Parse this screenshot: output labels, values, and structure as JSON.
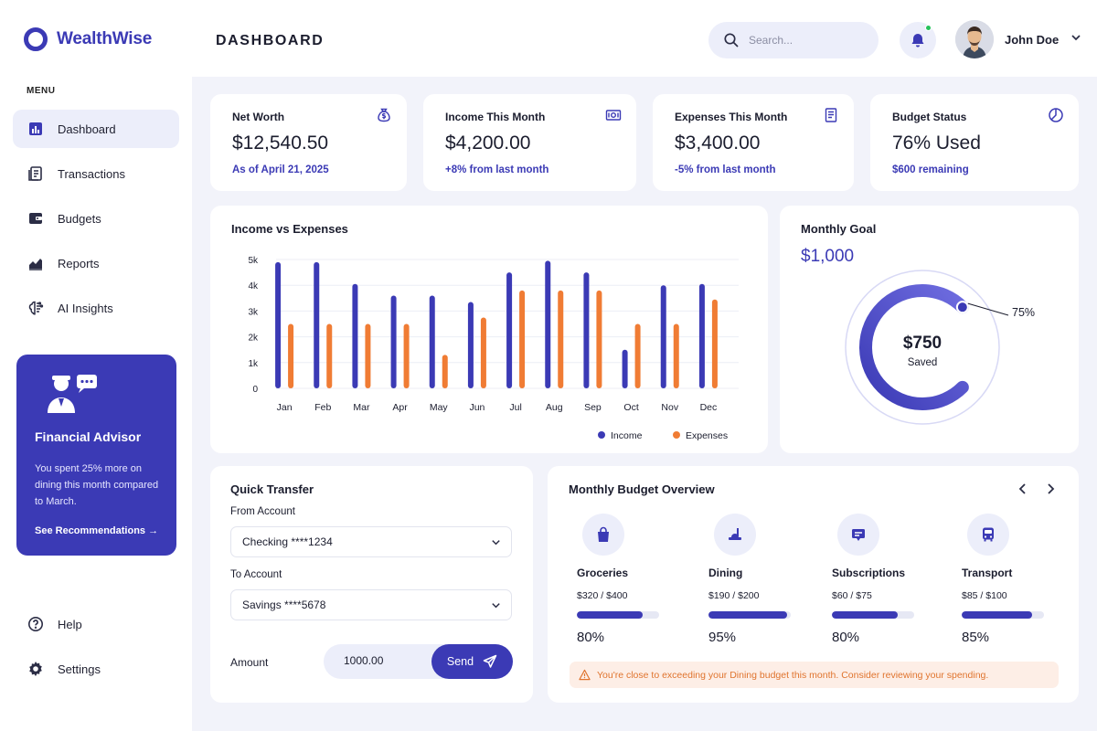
{
  "brand": {
    "name": "WealthWise"
  },
  "header": {
    "title": "DASHBOARD",
    "search_placeholder": "Search...",
    "user_name": "John Doe"
  },
  "sidebar": {
    "menu_heading": "MENU",
    "items": [
      {
        "label": "Dashboard",
        "icon": "bar-chart-icon",
        "active": true
      },
      {
        "label": "Transactions",
        "icon": "document-list-icon"
      },
      {
        "label": "Budgets",
        "icon": "wallet-icon"
      },
      {
        "label": "Reports",
        "icon": "line-chart-icon"
      },
      {
        "label": "AI Insights",
        "icon": "brain-icon"
      }
    ],
    "bottom_items": [
      {
        "label": "Help",
        "icon": "help-circle-icon"
      },
      {
        "label": "Settings",
        "icon": "gear-icon"
      }
    ],
    "advisor": {
      "title": "Financial Advisor",
      "text": "You spent 25% more on dining this month compared to March.",
      "link": "See Recommendations →"
    }
  },
  "stats": [
    {
      "label": "Net Worth",
      "value": "$12,540.50",
      "sub": "As of April 21, 2025",
      "icon": "money-bag-icon"
    },
    {
      "label": "Income This Month",
      "value": "$4,200.00",
      "sub": "+8% from last month",
      "icon": "banknote-icon"
    },
    {
      "label": "Expenses This Month",
      "value": "$3,400.00",
      "sub": "-5% from last month",
      "icon": "receipt-icon"
    },
    {
      "label": "Budget Status",
      "value": "76% Used",
      "sub": "$600 remaining",
      "icon": "pie-chart-icon"
    }
  ],
  "chart_data": {
    "type": "bar",
    "title": "Income vs Expenses",
    "categories": [
      "Jan",
      "Feb",
      "Mar",
      "Apr",
      "May",
      "Jun",
      "Jul",
      "Aug",
      "Sep",
      "Oct",
      "Nov",
      "Dec"
    ],
    "series": [
      {
        "name": "Income",
        "values": [
          4900,
          4900,
          4050,
          3600,
          3600,
          3350,
          4500,
          4950,
          4500,
          1500,
          4000,
          4050
        ],
        "color": "#3b3ab5"
      },
      {
        "name": "Expenses",
        "values": [
          2500,
          2500,
          2500,
          2500,
          1300,
          2750,
          3800,
          3800,
          3800,
          2500,
          2500,
          3450
        ],
        "color": "#f07c34"
      }
    ],
    "yticks": [
      "0",
      "1k",
      "2k",
      "3k",
      "4k",
      "5k"
    ],
    "ylim": [
      0,
      5000
    ],
    "grid": true,
    "legend": "bottom-right"
  },
  "goal": {
    "title": "Monthly Goal",
    "amount": "$1,000",
    "saved_value": "$750",
    "saved_label": "Saved",
    "percent_label": "75%",
    "progress": 0.75
  },
  "transfer": {
    "title": "Quick Transfer",
    "from_label": "From Account",
    "from_value": "Checking ****1234",
    "to_label": "To Account",
    "to_value": "Savings ****5678",
    "amount_label": "Amount",
    "amount_value": "1000.00",
    "send_label": "Send"
  },
  "budget": {
    "title": "Monthly Budget Overview",
    "items": [
      {
        "name": "Groceries",
        "amount": "$320 / $400",
        "percent": "80%",
        "progress": 0.8,
        "icon": "shopping-bag-icon"
      },
      {
        "name": "Dining",
        "amount": "$190 / $200",
        "percent": "95%",
        "progress": 0.95,
        "icon": "dining-icon"
      },
      {
        "name": "Subscriptions",
        "amount": "$60 / $75",
        "percent": "80%",
        "progress": 0.8,
        "icon": "subscription-icon"
      },
      {
        "name": "Transport",
        "amount": "$85 / $100",
        "percent": "85%",
        "progress": 0.85,
        "icon": "bus-icon"
      }
    ],
    "alert": "You're close to exceeding your Dining budget this month. Consider reviewing your spending."
  },
  "colors": {
    "accent": "#3b3ab5",
    "expense": "#f07c34",
    "success": "#26c25a",
    "warning": "#e0742e"
  }
}
